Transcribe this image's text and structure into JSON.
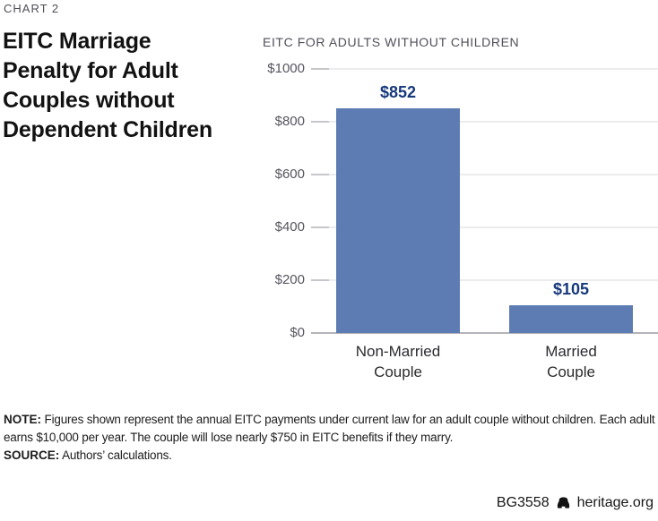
{
  "page": {
    "kicker": "CHART 2",
    "title_lines": [
      "EITC Marriage",
      "Penalty for Adult",
      "Couples without",
      "Dependent Children"
    ]
  },
  "note": {
    "note_label": "NOTE:",
    "note_text": " Figures shown represent the annual EITC payments under current law for an adult couple without children. Each adult earns $10,000 per year. The couple will lose nearly $750 in EITC benefits if they marry.",
    "source_label": "SOURCE:",
    "source_text": " Authors’ calculations."
  },
  "footer": {
    "doc_id": "BG3558",
    "site": "heritage.org",
    "icon": "liberty-bell-icon"
  },
  "chart_data": {
    "type": "bar",
    "title": "EITC FOR ADULTS WITHOUT CHILDREN",
    "categories": [
      "Non-Married\nCouple",
      "Married\nCouple"
    ],
    "values": [
      852,
      105
    ],
    "value_labels": [
      "$852",
      "$105"
    ],
    "xlabel": "",
    "ylabel": "",
    "ylim": [
      0,
      1000
    ],
    "ytick_interval": 200,
    "ytick_labels": [
      "$0",
      "$200",
      "$400",
      "$600",
      "$800",
      "$1000"
    ],
    "grid": true,
    "legend": false,
    "bar_color": "#5e7cb4",
    "value_label_color": "#17397c",
    "gridline_color": "#ececee",
    "axis_color": "#b3b3b9"
  }
}
